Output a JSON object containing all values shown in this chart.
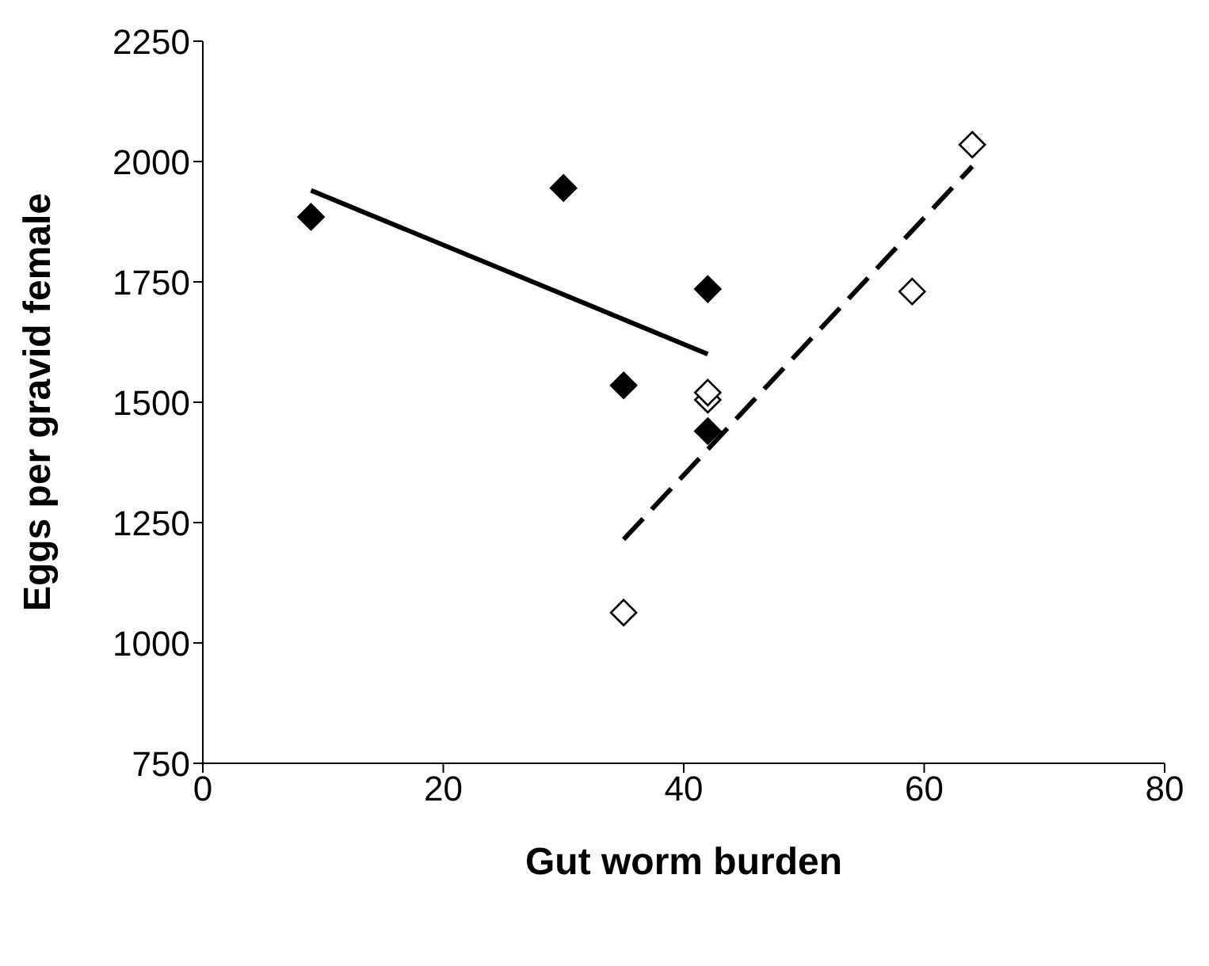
{
  "chart_data": {
    "type": "scatter",
    "xlabel": "Gut worm burden",
    "ylabel": "Eggs per gravid female",
    "xlim": [
      0,
      80
    ],
    "xticks": [
      0,
      20,
      40,
      60,
      80
    ],
    "ylim": [
      750,
      2250
    ],
    "yticks": [
      750,
      1000,
      1250,
      1500,
      1750,
      2000,
      2250
    ],
    "grid": false,
    "legend": false,
    "series": [
      {
        "marker": "diamond",
        "color": "#000000",
        "x": [
          9,
          30,
          35,
          42,
          42
        ],
        "values": [
          1885,
          1945,
          1535,
          1735,
          1440
        ]
      },
      {
        "marker": "diamond",
        "color": "#ffffff",
        "x": [
          35,
          42,
          42,
          59,
          64
        ],
        "values": [
          1063,
          1505,
          1520,
          1730,
          2035
        ]
      },
      {
        "type": "line",
        "marker": "none",
        "line_style": "solid",
        "color": "#000000",
        "x": [
          9,
          42
        ],
        "values": [
          1940,
          1600
        ]
      },
      {
        "type": "line",
        "marker": "none",
        "line_style": "dashed",
        "color": "#000000",
        "x": [
          35,
          64
        ],
        "values": [
          1215,
          1990
        ]
      }
    ]
  }
}
